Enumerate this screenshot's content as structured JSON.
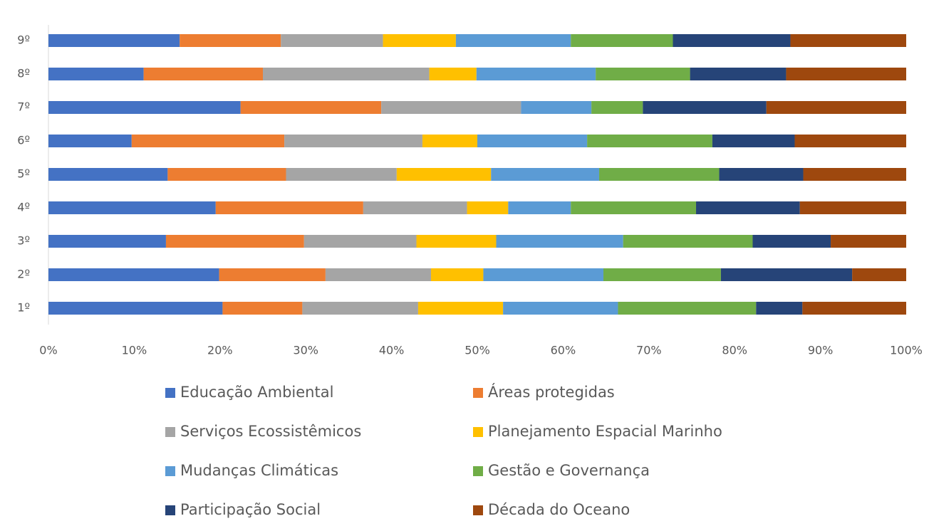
{
  "chart_data": {
    "type": "stacked_barh",
    "categories": [
      "1º",
      "2º",
      "3º",
      "4º",
      "5º",
      "6º",
      "7º",
      "8º",
      "9º"
    ],
    "series": [
      {
        "name": "Educação Ambiental",
        "color": "#4472c4",
        "values": [
          20.3,
          19.9,
          13.7,
          19.5,
          13.9,
          9.7,
          22.4,
          11.1,
          15.3
        ]
      },
      {
        "name": "Áreas protegidas",
        "color": "#ed7d31",
        "values": [
          9.3,
          12.4,
          16.1,
          17.2,
          13.8,
          17.8,
          16.4,
          13.9,
          11.8
        ]
      },
      {
        "name": "Serviços Ecossistêmicos",
        "color": "#a5a5a5",
        "values": [
          13.5,
          12.3,
          13.1,
          12.1,
          12.9,
          16.1,
          16.3,
          19.4,
          11.9
        ]
      },
      {
        "name": "Planejamento Espacial Marinho",
        "color": "#ffc000",
        "values": [
          9.9,
          6.1,
          9.3,
          4.8,
          11.0,
          6.4,
          0,
          5.5,
          8.5
        ]
      },
      {
        "name": "Mudanças Climáticas",
        "color": "#5b9bd5",
        "values": [
          13.4,
          14.0,
          14.8,
          7.3,
          12.6,
          12.8,
          8.2,
          13.9,
          13.4
        ]
      },
      {
        "name": "Gestão e Governança",
        "color": "#70ad47",
        "values": [
          16.1,
          13.7,
          15.1,
          14.6,
          14.0,
          14.6,
          6.0,
          11.0,
          11.9
        ]
      },
      {
        "name": "Participação Social",
        "color": "#264478",
        "values": [
          5.4,
          15.3,
          9.1,
          12.1,
          9.8,
          9.6,
          14.4,
          11.2,
          13.7
        ]
      },
      {
        "name": "Década do Oceano",
        "color": "#9e480e",
        "values": [
          12.1,
          6.3,
          8.8,
          12.4,
          12.0,
          13.0,
          16.3,
          14.0,
          13.5
        ]
      }
    ],
    "xlim": [
      0,
      100
    ],
    "xticks": [
      {
        "value": 0,
        "label": "0%"
      },
      {
        "value": 10,
        "label": "10%"
      },
      {
        "value": 20,
        "label": "20%"
      },
      {
        "value": 30,
        "label": "30%"
      },
      {
        "value": 40,
        "label": "40%"
      },
      {
        "value": 50,
        "label": "50%"
      },
      {
        "value": 60,
        "label": "60%"
      },
      {
        "value": 70,
        "label": "70%"
      },
      {
        "value": 80,
        "label": "80%"
      },
      {
        "value": 90,
        "label": "90%"
      },
      {
        "value": 100,
        "label": "100%"
      }
    ],
    "legend": "bottom"
  }
}
